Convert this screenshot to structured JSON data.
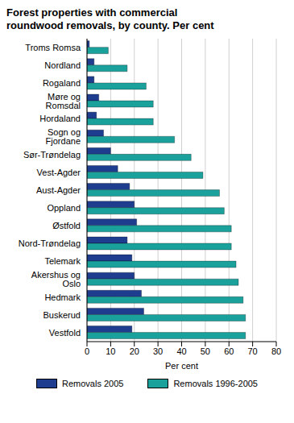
{
  "chart_data": {
    "type": "bar",
    "title": "Forest properties with commercial roundwood removals, by county. Per cent",
    "orientation": "horizontal",
    "xlabel": "Per cent",
    "categories": [
      "Troms Romsa",
      "Nordland",
      "Rogaland",
      "Møre og Romsdal",
      "Hordaland",
      "Sogn og Fjordane",
      "Sør-Trøndelag",
      "Vest-Agder",
      "Aust-Agder",
      "Oppland",
      "Østfold",
      "Nord-Trøndelag",
      "Telemark",
      "Akershus og Oslo",
      "Hedmark",
      "Buskerud",
      "Vestfold"
    ],
    "series": [
      {
        "name": "Removals 2005",
        "color": "#1f3d8f",
        "values": [
          1,
          3,
          3,
          5,
          4,
          7,
          10,
          13,
          18,
          20,
          21,
          17,
          19,
          20,
          23,
          24,
          19
        ]
      },
      {
        "name": "Removals 1996-2005",
        "color": "#1aa19c",
        "values": [
          9,
          17,
          25,
          28,
          28,
          37,
          44,
          49,
          56,
          58,
          61,
          61,
          63,
          64,
          66,
          67,
          67
        ]
      }
    ],
    "xlim": [
      0,
      80
    ],
    "xticks": [
      0,
      10,
      20,
      30,
      40,
      50,
      60,
      70,
      80
    ],
    "grid": true,
    "legend": "bottom"
  }
}
